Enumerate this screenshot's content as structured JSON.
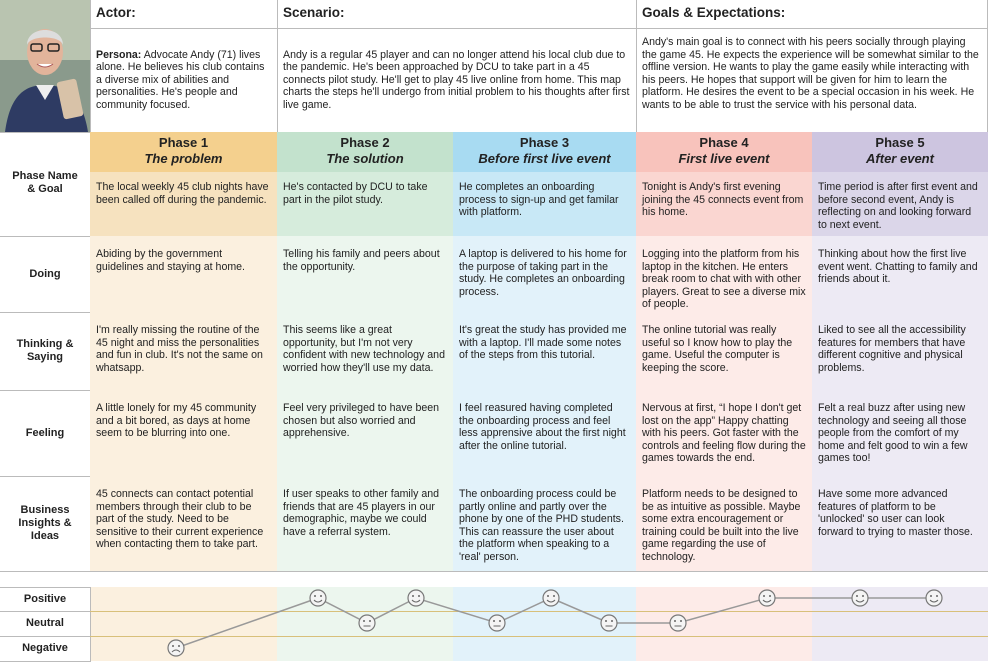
{
  "header": {
    "actor_label": "Actor:",
    "scenario_label": "Scenario:",
    "goals_label": "Goals & Expectations:",
    "persona_label": "Persona:",
    "persona": "Advocate Andy (71) lives alone. He believes his club contains a diverse mix of abilities and personalities. He's people and community focused.",
    "scenario": "Andy is a regular 45 player and can no longer attend his local club due to the pandemic. He's been approached by DCU to take part in a 45 connects pilot study. He'll get to play 45 live online from home. This map charts the steps he'll undergo from initial problem to his thoughts after first live game.",
    "goals": "Andy's main goal is to connect with his peers socially through playing the game 45. He expects the experience will be somewhat similar to the offline version. He wants to play the game easily while interacting with his peers. He hopes that support will be given for him to learn the platform. He desires the event to be a special occasion in his week. He wants to be able to trust the service with his personal data."
  },
  "row_labels": [
    "Phase Name & Goal",
    "Doing",
    "Thinking & Saying",
    "Feeling",
    "Business Insights & Ideas"
  ],
  "phases": [
    {
      "name": "Phase 1",
      "title": "The problem",
      "goal": "The local weekly 45 club nights have been called off during the pandemic.",
      "doing": "Abiding by the government guidelines and staying at home.",
      "thinking": "I'm really missing the routine of the 45 night and miss the personalities and fun in club. It's not the same on whatsapp.",
      "feeling": "A little lonely for my 45 community and a bit bored, as days at home seem to be blurring into one.",
      "insights": "45 connects can contact potential members through their club to be part of the study. Need to be sensitive to their current experience when contacting them to take part."
    },
    {
      "name": "Phase 2",
      "title": "The solution",
      "goal": "He's contacted by DCU to take part in the pilot study.",
      "doing": "Telling his family and peers about the opportunity.",
      "thinking": "This seems like a great opportunity, but I'm not very confident with new technology and worried how they'll use my data.",
      "feeling": "Feel very privileged to have been chosen but also worried and apprehensive.",
      "insights": "If user speaks to other family and friends that are 45 players in our demographic, maybe we could have a referral system."
    },
    {
      "name": "Phase 3",
      "title": "Before first live event",
      "goal": "He completes an onboarding process to sign-up and get familar with platform.",
      "doing": "A laptop is delivered to his home for the purpose of taking part in the study. He completes an onboarding process.",
      "thinking": "It's great the study has provided me with a laptop. I'll made some notes of the steps from this tutorial.",
      "feeling": "I feel reasured having completed the onboarding process and feel less apprensive about the first night after the online tutorial.",
      "insights": "The onboarding process could be partly online and partly over the phone by one of the PHD students. This can reassure the user about the platform when speaking to a 'real' person."
    },
    {
      "name": "Phase 4",
      "title": "First live event",
      "goal": "Tonight is Andy's first evening joining the 45 connects event from his home.",
      "doing": "Logging into the platform from his laptop in the kitchen. He enters break room to chat with with other players. Great to see a diverse mix of people.",
      "thinking": "The online tutorial was really useful so I know how to play the game. Useful the computer is keeping the score.",
      "feeling": "Nervous at first, “I hope I don't get lost on the app” Happy chatting with his peers. Got faster with the controls and feeling flow during the games towards the end.",
      "insights": "Platform needs to be designed to be as intuitive as possible. Maybe some extra encouragement or training could be built into the live game regarding the use of technology."
    },
    {
      "name": "Phase 5",
      "title": "After event",
      "goal": "Time period is after first event and before second event, Andy is reflecting on and looking forward to next event.",
      "doing": "Thinking about how the first live event went. Chatting to family and friends about it.",
      "thinking": "Liked to see all the accessibility features for members that have different cognitive and physical problems.",
      "feeling": "Felt a real buzz after using new technology and seeing all those people from the comfort of my home and felt good to win a few games too!",
      "insights": "Have some more advanced features of platform to be 'unlocked' so user can look forward to trying to master those."
    }
  ],
  "emotion_levels": [
    "Positive",
    "Neutral",
    "Negative"
  ]
}
